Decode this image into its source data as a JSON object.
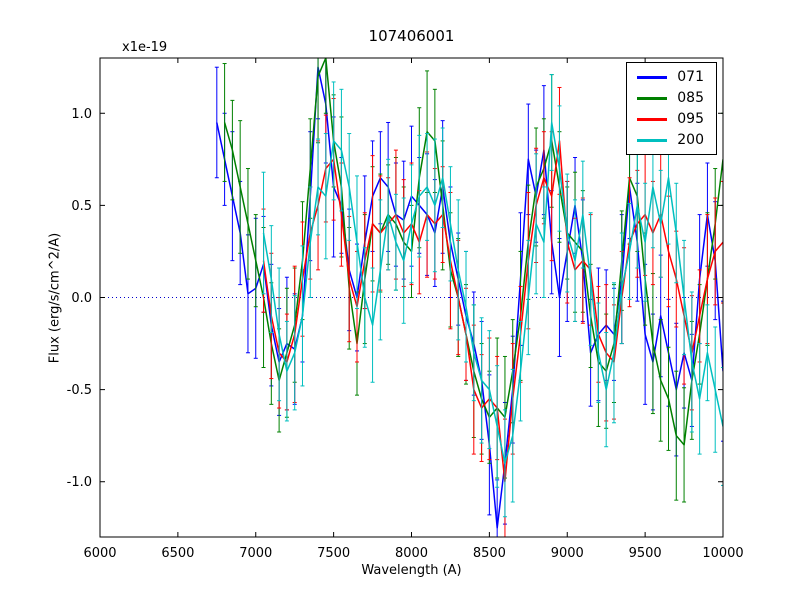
{
  "chart_data": {
    "type": "line",
    "title": "107406001",
    "xlabel": "Wavelength (A)",
    "ylabel": "Flux (erg/s/cm^2/A)",
    "y_offset_label": "x1e-19",
    "xlim": [
      6000,
      10000
    ],
    "ylim": [
      -1.3,
      1.3
    ],
    "xticks": [
      6000,
      6500,
      7000,
      7500,
      8000,
      8500,
      9000,
      9500,
      10000
    ],
    "xtick_labels": [
      "6000",
      "6500",
      "7000",
      "7500",
      "8000",
      "8500",
      "9000",
      "9500",
      "10000"
    ],
    "yticks": [
      -1.0,
      -0.5,
      0.0,
      0.5,
      1.0
    ],
    "ytick_labels": [
      "-1.0",
      "-0.5",
      "0.0",
      "0.5",
      "1.0"
    ],
    "grid": false,
    "legend_position": "upper right",
    "zero_line": {
      "y": 0,
      "style": "dotted",
      "color": "#0000cc"
    },
    "series": [
      {
        "name": "071",
        "color": "#0000ff",
        "x_start": 6750,
        "x_step": 50,
        "values": [
          0.95,
          0.75,
          0.55,
          0.35,
          0.02,
          0.05,
          0.18,
          -0.15,
          -0.35,
          -0.25,
          -0.28,
          -0.1,
          0.55,
          1.25,
          1.05,
          0.6,
          0.5,
          0.15,
          0.0,
          0.3,
          0.55,
          0.65,
          0.6,
          0.45,
          0.42,
          0.55,
          0.5,
          0.45,
          0.35,
          0.6,
          0.3,
          0.1,
          -0.1,
          -0.25,
          -0.45,
          -0.8,
          -1.25,
          -0.9,
          -0.5,
          0.1,
          0.75,
          0.55,
          0.8,
          0.3,
          0.0,
          0.25,
          0.5,
          0.2,
          -0.3,
          -0.2,
          -0.15,
          -0.2,
          0.1,
          0.6,
          0.3,
          -0.2,
          -0.35,
          -0.1,
          -0.3,
          -0.5,
          -0.3,
          -0.45,
          0.1,
          0.45,
          0.2,
          -0.4
        ],
        "errors": [
          0.3,
          0.25,
          0.35,
          0.28,
          0.32,
          0.38,
          0.26,
          0.33,
          0.29,
          0.36,
          0.3,
          0.25,
          0.35,
          0.28,
          0.32,
          0.38,
          0.26,
          0.33,
          0.29,
          0.36,
          0.3,
          0.25,
          0.35,
          0.28,
          0.32,
          0.38,
          0.26,
          0.33,
          0.29,
          0.36,
          0.3,
          0.25,
          0.35,
          0.28,
          0.32,
          0.38,
          0.26,
          0.33,
          0.29,
          0.36,
          0.3,
          0.25,
          0.35,
          0.28,
          0.32,
          0.38,
          0.26,
          0.33,
          0.29,
          0.36,
          0.3,
          0.25,
          0.35,
          0.28,
          0.32,
          0.38,
          0.26,
          0.33,
          0.29,
          0.36,
          0.3,
          0.25,
          0.35,
          0.28,
          0.32,
          0.38
        ]
      },
      {
        "name": "085",
        "color": "#008000",
        "x_start": 6800,
        "x_step": 50,
        "values": [
          0.95,
          0.8,
          0.6,
          0.4,
          0.2,
          0.0,
          -0.25,
          -0.45,
          -0.3,
          -0.15,
          0.2,
          0.7,
          1.2,
          1.3,
          0.85,
          0.6,
          0.05,
          -0.25,
          0.1,
          0.4,
          0.35,
          0.45,
          0.4,
          0.3,
          0.25,
          0.65,
          0.9,
          0.85,
          0.5,
          0.15,
          0.0,
          -0.2,
          -0.4,
          -0.55,
          -0.65,
          -0.6,
          -0.65,
          -0.4,
          -0.1,
          0.3,
          0.6,
          0.7,
          0.85,
          0.6,
          0.35,
          0.3,
          0.25,
          -0.1,
          -0.35,
          -0.4,
          -0.25,
          0.2,
          0.65,
          0.55,
          0.1,
          -0.25,
          -0.45,
          -0.55,
          -0.75,
          -0.8,
          -0.45,
          -0.2,
          0.1,
          0.4,
          0.75
        ],
        "errors": [
          0.32,
          0.27,
          0.36,
          0.3,
          0.25,
          0.38,
          0.33,
          0.28,
          0.35,
          0.31,
          0.32,
          0.27,
          0.36,
          0.3,
          0.25,
          0.38,
          0.33,
          0.28,
          0.35,
          0.31,
          0.32,
          0.27,
          0.36,
          0.3,
          0.25,
          0.38,
          0.33,
          0.28,
          0.35,
          0.31,
          0.32,
          0.27,
          0.36,
          0.3,
          0.25,
          0.38,
          0.33,
          0.28,
          0.35,
          0.31,
          0.32,
          0.27,
          0.36,
          0.3,
          0.25,
          0.38,
          0.33,
          0.28,
          0.35,
          0.31,
          0.32,
          0.27,
          0.36,
          0.3,
          0.25,
          0.38,
          0.33,
          0.28,
          0.35,
          0.31,
          0.32,
          0.27,
          0.36,
          0.3,
          0.25
        ]
      },
      {
        "name": "095",
        "color": "#ff0000",
        "x_start": 7050,
        "x_step": 50,
        "values": [
          0.2,
          -0.1,
          -0.3,
          -0.35,
          -0.2,
          0.1,
          0.35,
          0.5,
          0.7,
          0.75,
          0.45,
          0.1,
          -0.05,
          0.2,
          0.4,
          0.35,
          0.4,
          0.45,
          0.35,
          0.4,
          0.3,
          0.45,
          0.4,
          0.45,
          0.2,
          0.0,
          -0.2,
          -0.5,
          -0.6,
          -0.55,
          -0.6,
          -1.0,
          -0.55,
          -0.2,
          0.2,
          0.5,
          0.65,
          0.55,
          0.85,
          0.3,
          0.15,
          0.2,
          0.15,
          -0.2,
          -0.3,
          -0.35,
          0.0,
          0.3,
          0.4,
          0.45,
          0.35,
          0.45,
          0.25,
          0.1,
          -0.1,
          -0.3,
          -0.1,
          0.1,
          0.25,
          0.3
        ],
        "errors": [
          0.28,
          0.34,
          0.3,
          0.26,
          0.37,
          0.31,
          0.25,
          0.35,
          0.29,
          0.33,
          0.28,
          0.34,
          0.3,
          0.26,
          0.37,
          0.31,
          0.25,
          0.35,
          0.29,
          0.33,
          0.28,
          0.34,
          0.3,
          0.26,
          0.37,
          0.31,
          0.25,
          0.35,
          0.29,
          0.33,
          0.28,
          0.34,
          0.3,
          0.26,
          0.37,
          0.31,
          0.25,
          0.35,
          0.29,
          0.33,
          0.28,
          0.34,
          0.3,
          0.26,
          0.37,
          0.31,
          0.25,
          0.35,
          0.29,
          0.33,
          0.28,
          0.34,
          0.3,
          0.26,
          0.37,
          0.31,
          0.25,
          0.35,
          0.29,
          0.33
        ]
      },
      {
        "name": "200",
        "color": "#00bfbf",
        "x_start": 7050,
        "x_step": 50,
        "values": [
          0.35,
          0.1,
          -0.2,
          -0.4,
          -0.3,
          -0.1,
          0.3,
          0.6,
          0.55,
          0.85,
          0.8,
          0.6,
          0.3,
          0.0,
          -0.15,
          0.15,
          0.45,
          0.3,
          0.2,
          0.4,
          0.55,
          0.6,
          0.5,
          0.65,
          0.4,
          0.15,
          -0.05,
          -0.3,
          -0.45,
          -0.5,
          -0.7,
          -0.9,
          -0.75,
          -0.4,
          0.0,
          0.4,
          0.3,
          0.95,
          0.7,
          0.35,
          0.2,
          0.45,
          0.1,
          -0.3,
          -0.5,
          -0.3,
          0.05,
          0.25,
          0.5,
          0.3,
          0.6,
          0.4,
          0.65,
          0.35,
          0.0,
          -0.35,
          -0.55,
          -0.3,
          -0.5,
          -0.7
        ],
        "errors": [
          0.33,
          0.29,
          0.36,
          0.27,
          0.31,
          0.38,
          0.3,
          0.26,
          0.34,
          0.32,
          0.33,
          0.29,
          0.36,
          0.27,
          0.31,
          0.38,
          0.3,
          0.26,
          0.34,
          0.32,
          0.33,
          0.29,
          0.36,
          0.27,
          0.31,
          0.38,
          0.3,
          0.26,
          0.34,
          0.32,
          0.33,
          0.29,
          0.36,
          0.27,
          0.31,
          0.38,
          0.3,
          0.26,
          0.34,
          0.32,
          0.33,
          0.29,
          0.36,
          0.27,
          0.31,
          0.38,
          0.3,
          0.26,
          0.34,
          0.32,
          0.33,
          0.29,
          0.36,
          0.27,
          0.31,
          0.38,
          0.3,
          0.26,
          0.34,
          0.32
        ]
      }
    ]
  }
}
